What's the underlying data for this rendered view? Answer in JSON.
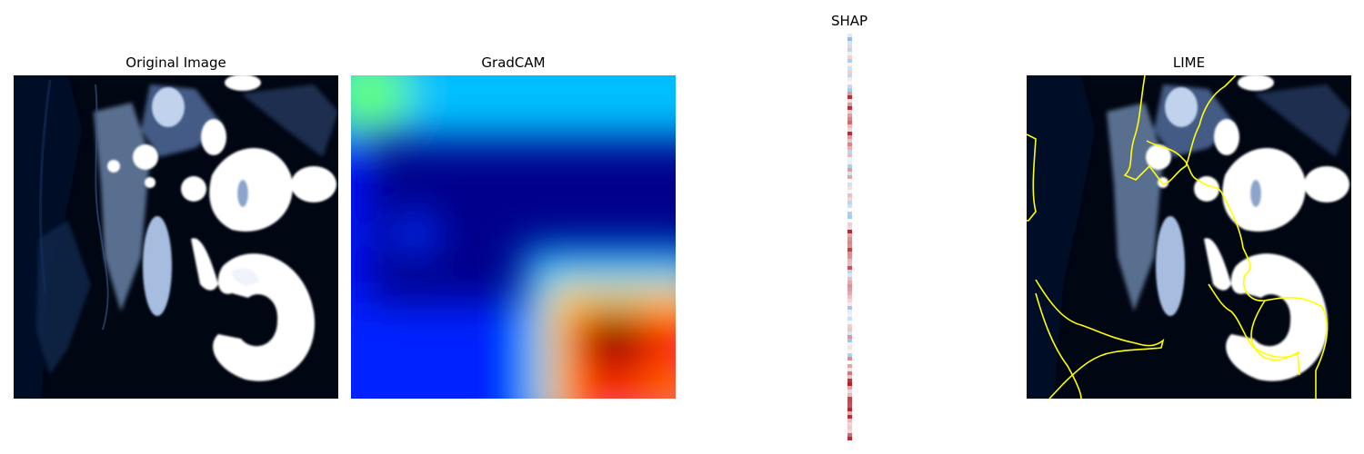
{
  "panels": {
    "original": {
      "title": "Original Image"
    },
    "gradcam": {
      "title": "GradCAM"
    },
    "shap": {
      "title": "SHAP"
    },
    "lime": {
      "title": "LIME"
    }
  }
}
